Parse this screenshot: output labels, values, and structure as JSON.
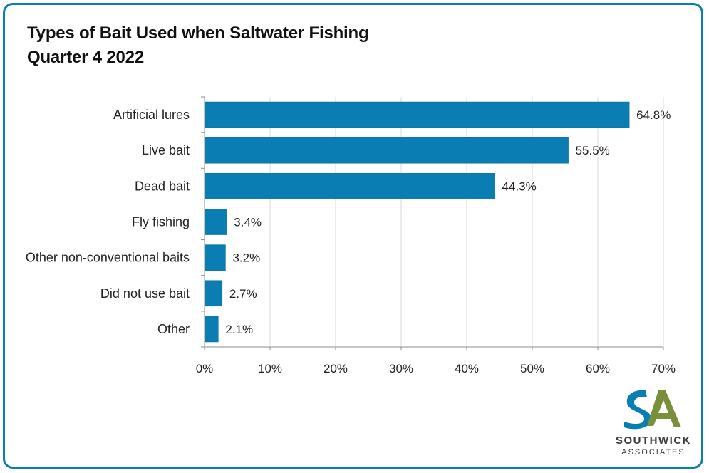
{
  "chart_data": {
    "type": "bar",
    "orientation": "horizontal",
    "title_line1": "Types of Bait Used when Saltwater Fishing",
    "title_line2": "Quarter 4 2022",
    "categories": [
      "Artificial lures",
      "Live bait",
      "Dead bait",
      "Fly fishing",
      "Other non-conventional baits",
      "Did not use bait",
      "Other"
    ],
    "values": [
      64.8,
      55.5,
      44.3,
      3.4,
      3.2,
      2.7,
      2.1
    ],
    "data_labels": [
      "64.8%",
      "55.5%",
      "44.3%",
      "3.4%",
      "3.2%",
      "2.7%",
      "2.1%"
    ],
    "xlim": [
      0,
      70
    ],
    "xticks": [
      0,
      10,
      20,
      30,
      40,
      50,
      60,
      70
    ],
    "xtick_labels": [
      "0%",
      "10%",
      "20%",
      "30%",
      "40%",
      "50%",
      "60%",
      "70%"
    ],
    "grid": true,
    "bar_color": "#0a7db2"
  },
  "logo": {
    "name": "SOUTHWICK",
    "sub": "ASSOCIATES",
    "color_blue": "#0a7db2",
    "color_green": "#7a8f3c"
  }
}
